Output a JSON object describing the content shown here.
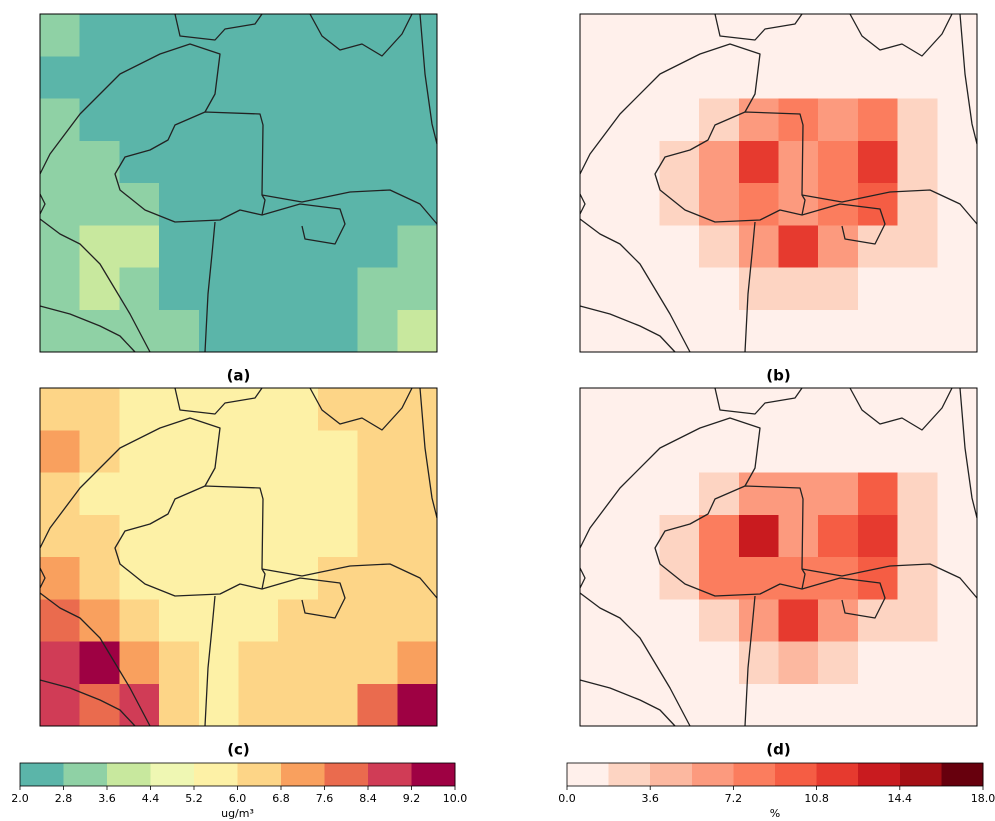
{
  "chart_data": {
    "type": "heatmap",
    "colorbars": [
      {
        "label": "ug/m³",
        "clim": [
          2,
          10
        ],
        "colors": [
          "#5bb5a9",
          "#8fd1a5",
          "#c8e89e",
          "#eff7b3",
          "#fdf1a6",
          "#fdd587",
          "#f9a05e",
          "#ea6b4e",
          "#d03c56",
          "#9e0143"
        ],
        "ticks": [
          {
            "value": 2,
            "label": "2.0"
          },
          2.8,
          3.6,
          4.4,
          5.2,
          {
            "value": 6,
            "label": "6.0"
          },
          6.8,
          7.6,
          8.4,
          9.2,
          {
            "value": 10,
            "label": "10.0"
          }
        ],
        "panels": [
          {
            "label": "(a)",
            "values": [
              [
                3.0,
                2.4,
                2.4,
                2.4,
                2.4,
                2.4,
                2.4,
                2.4,
                2.4,
                2.4
              ],
              [
                2.4,
                2.4,
                2.4,
                2.4,
                2.4,
                2.4,
                2.4,
                2.4,
                2.4,
                2.4
              ],
              [
                3.0,
                2.4,
                2.4,
                2.4,
                2.4,
                2.4,
                2.4,
                2.4,
                2.4,
                2.4
              ],
              [
                3.2,
                3.0,
                2.4,
                2.4,
                2.4,
                2.4,
                2.4,
                2.4,
                2.4,
                2.4
              ],
              [
                3.2,
                3.2,
                3.0,
                2.4,
                2.4,
                2.4,
                2.4,
                2.4,
                2.4,
                2.4
              ],
              [
                3.2,
                4.0,
                3.6,
                2.4,
                2.4,
                2.4,
                2.4,
                2.4,
                2.4,
                3.0
              ],
              [
                3.0,
                3.6,
                3.2,
                2.4,
                2.4,
                2.4,
                2.4,
                2.4,
                3.0,
                3.2
              ],
              [
                3.2,
                3.0,
                3.2,
                3.0,
                2.4,
                2.4,
                2.4,
                2.4,
                3.2,
                4.2
              ]
            ]
          },
          {
            "label": "(c)",
            "values": [
              [
                6.4,
                6.0,
                5.6,
                5.6,
                5.6,
                5.6,
                5.6,
                6.2,
                6.4,
                6.4
              ],
              [
                7.0,
                6.2,
                5.6,
                5.6,
                5.6,
                5.6,
                5.6,
                5.6,
                6.2,
                6.4
              ],
              [
                6.4,
                5.6,
                5.6,
                5.6,
                5.6,
                5.6,
                5.6,
                5.6,
                6.2,
                6.4
              ],
              [
                6.4,
                6.0,
                5.6,
                5.6,
                5.6,
                5.6,
                5.6,
                5.6,
                6.2,
                6.4
              ],
              [
                7.2,
                6.4,
                5.6,
                5.6,
                5.6,
                5.6,
                5.6,
                6.0,
                6.4,
                6.4
              ],
              [
                8.0,
                7.2,
                6.4,
                5.6,
                5.6,
                5.6,
                6.2,
                6.4,
                6.4,
                6.4
              ],
              [
                8.8,
                9.6,
                7.2,
                6.0,
                5.6,
                6.0,
                6.4,
                6.4,
                6.4,
                7.2
              ],
              [
                8.8,
                8.0,
                8.8,
                6.4,
                5.6,
                6.2,
                6.4,
                6.4,
                7.6,
                9.6
              ]
            ]
          }
        ]
      },
      {
        "label": "%",
        "clim": [
          0,
          18
        ],
        "colors": [
          "#fff0eb",
          "#fdd4c2",
          "#fcb8a0",
          "#fc9a7e",
          "#fb7d5e",
          "#f55d44",
          "#e63a2f",
          "#c91b1f",
          "#a50f15",
          "#67000d"
        ],
        "ticks": [
          {
            "value": 0,
            "label": "0.0"
          },
          3.6,
          7.2,
          10.8,
          14.4,
          {
            "value": 18,
            "label": "18.0"
          }
        ],
        "panels": [
          {
            "label": "(b)",
            "values": [
              [
                0.5,
                0.5,
                0.5,
                0.5,
                0.5,
                0.5,
                0.5,
                0.5,
                0.5,
                0.5
              ],
              [
                0.5,
                0.5,
                0.5,
                0.5,
                0.5,
                0.5,
                0.5,
                0.5,
                0.5,
                0.5
              ],
              [
                0.5,
                0.5,
                0.5,
                2.5,
                6.0,
                7.5,
                7.0,
                8.5,
                2.5,
                0.5
              ],
              [
                0.5,
                0.5,
                2.5,
                7.0,
                12.5,
                6.5,
                8.0,
                11.0,
                3.5,
                0.5
              ],
              [
                0.5,
                0.5,
                2.5,
                7.0,
                8.0,
                7.0,
                7.5,
                9.5,
                3.5,
                0.5
              ],
              [
                0.5,
                0.5,
                0.5,
                3.5,
                6.5,
                11.0,
                5.5,
                3.5,
                2.0,
                0.5
              ],
              [
                0.5,
                0.5,
                0.5,
                0.5,
                2.5,
                3.5,
                2.0,
                0.5,
                0.5,
                0.5
              ],
              [
                0.5,
                0.5,
                0.5,
                0.5,
                0.5,
                0.5,
                0.5,
                0.5,
                0.5,
                0.5
              ]
            ]
          },
          {
            "label": "(d)",
            "values": [
              [
                0.5,
                0.5,
                0.5,
                0.5,
                0.5,
                0.5,
                0.5,
                0.5,
                0.5,
                0.5
              ],
              [
                0.5,
                0.5,
                0.5,
                0.5,
                0.5,
                0.5,
                0.5,
                0.5,
                0.5,
                0.5
              ],
              [
                0.5,
                0.5,
                0.5,
                2.5,
                5.5,
                7.0,
                7.0,
                9.5,
                2.5,
                0.5
              ],
              [
                0.5,
                0.5,
                2.5,
                8.0,
                13.0,
                7.0,
                9.0,
                12.5,
                3.5,
                0.5
              ],
              [
                0.5,
                0.5,
                2.5,
                7.5,
                8.5,
                7.5,
                8.0,
                9.0,
                3.5,
                0.5
              ],
              [
                0.5,
                0.5,
                0.5,
                3.5,
                7.0,
                12.0,
                6.0,
                3.5,
                2.0,
                0.5
              ],
              [
                0.5,
                0.5,
                0.5,
                0.5,
                2.5,
                4.0,
                2.0,
                0.5,
                0.5,
                0.5
              ],
              [
                0.5,
                0.5,
                0.5,
                0.5,
                0.5,
                0.5,
                0.5,
                0.5,
                0.5,
                0.5
              ]
            ]
          }
        ]
      }
    ]
  }
}
